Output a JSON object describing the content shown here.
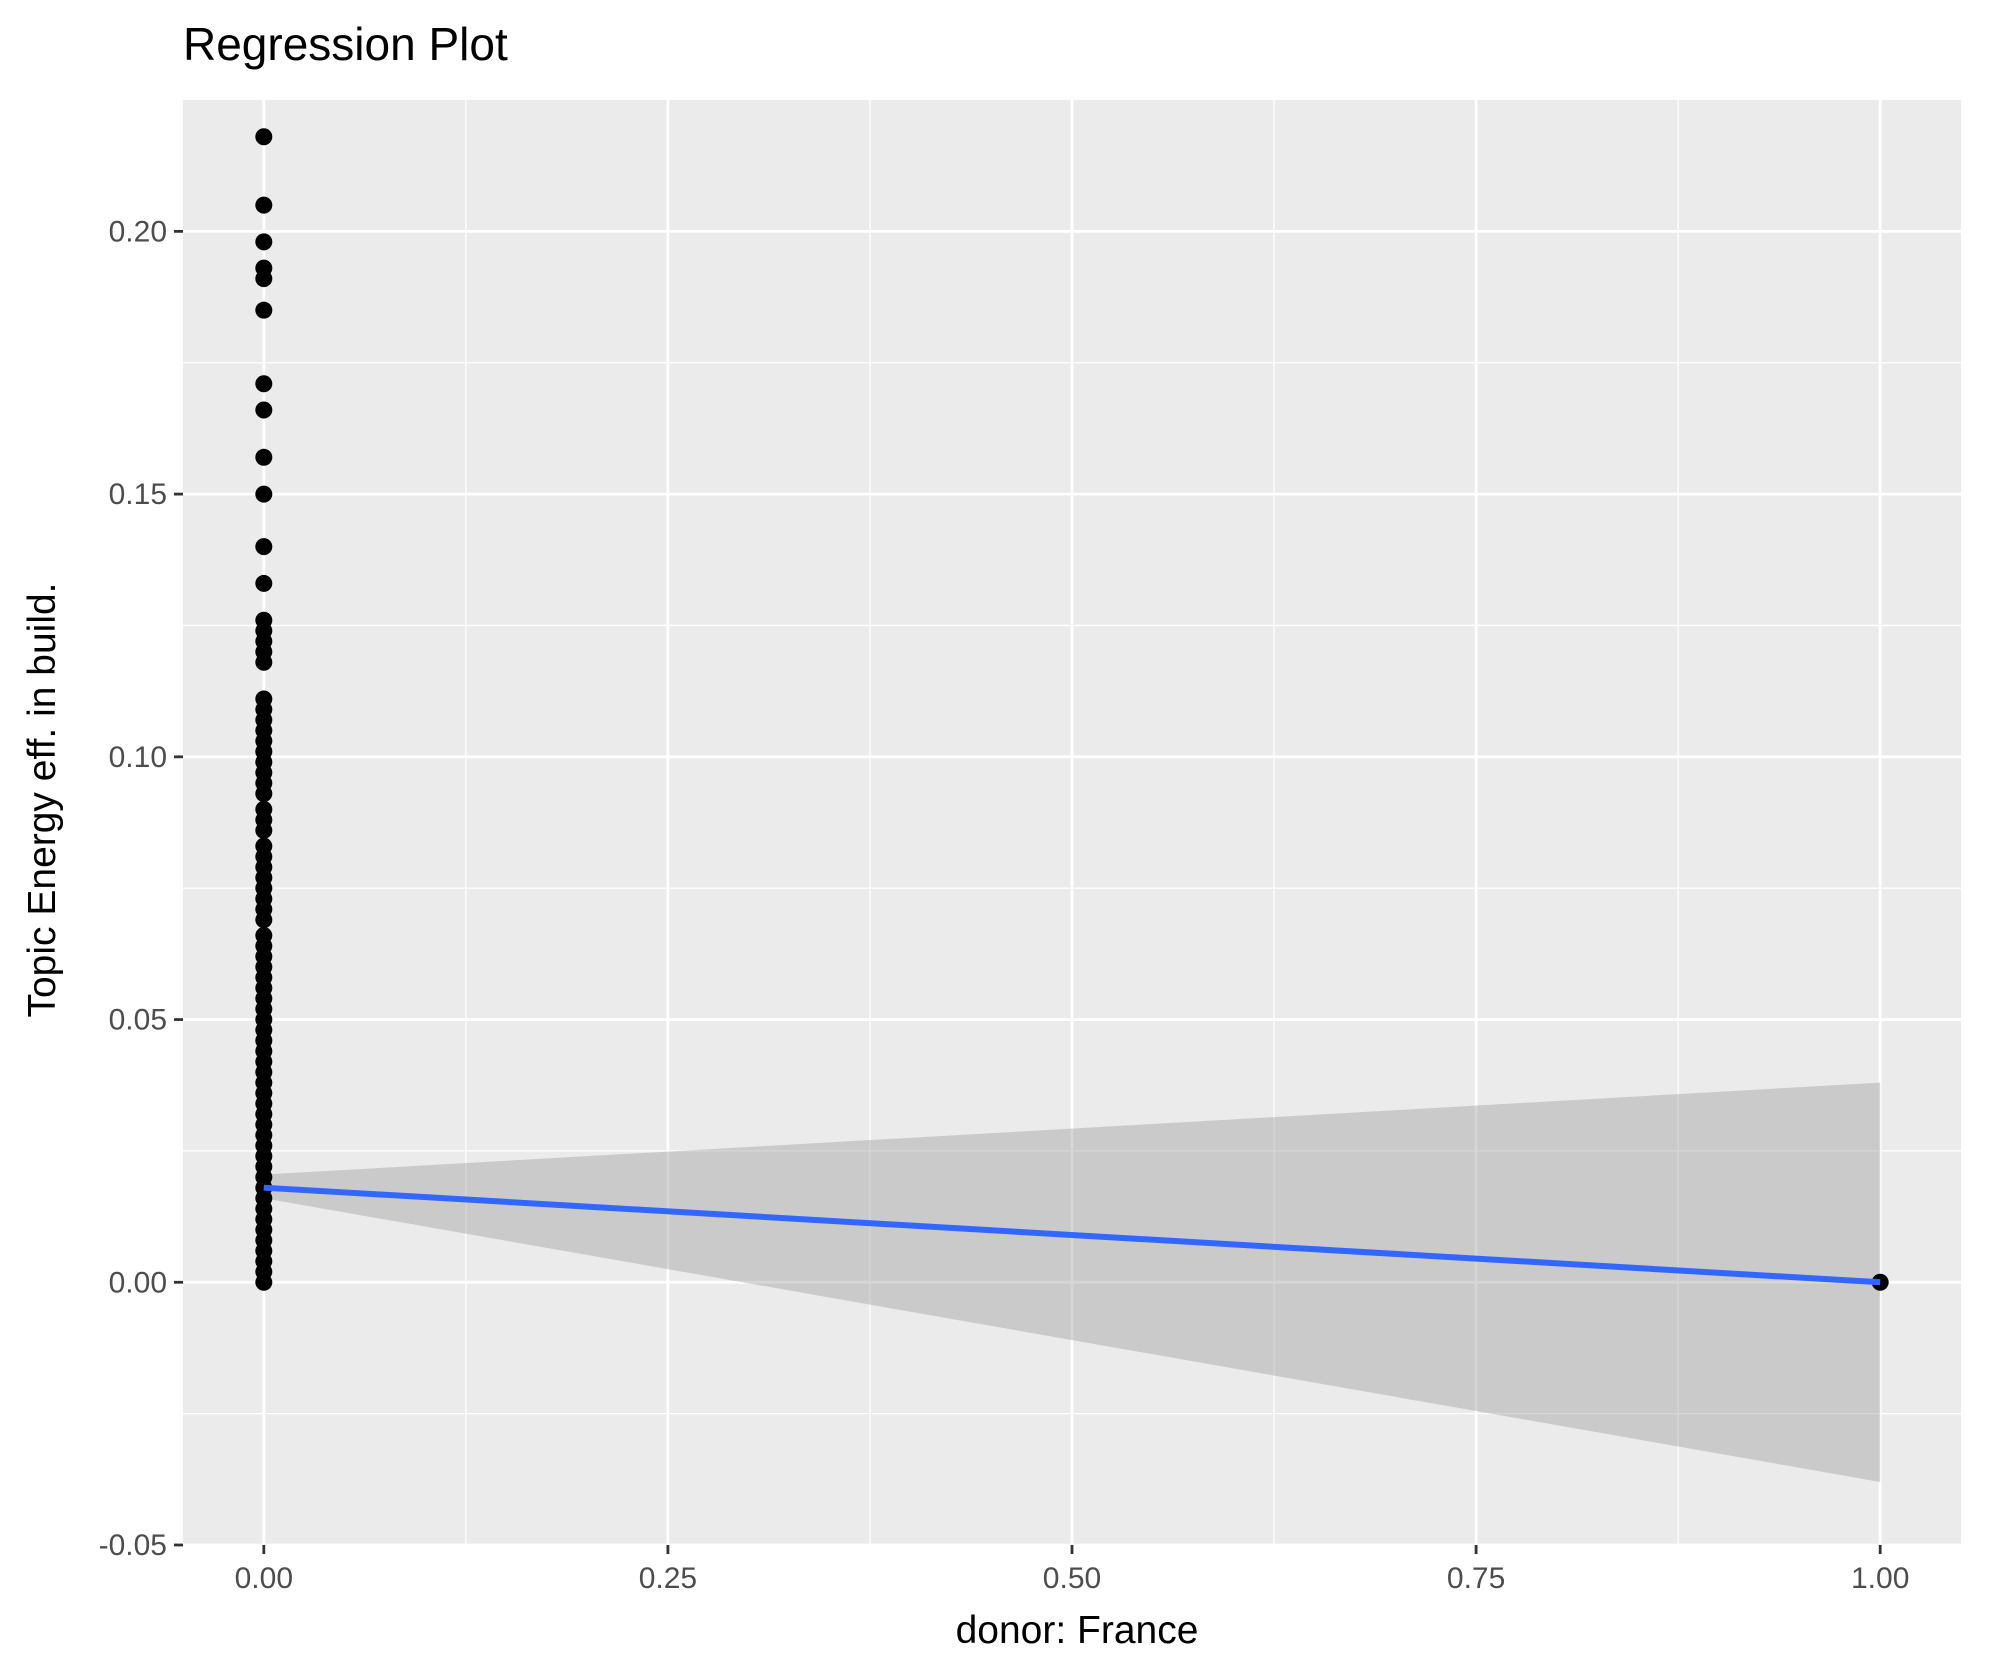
{
  "chart_data": {
    "type": "scatter",
    "title": "Regression Plot",
    "xlabel": "donor: France",
    "ylabel": "Topic Energy eff. in build.",
    "xlim": [
      -0.05,
      1.05
    ],
    "ylim": [
      -0.05,
      0.225
    ],
    "x_ticks": [
      0.0,
      0.25,
      0.5,
      0.75,
      1.0
    ],
    "x_tick_labels": [
      "0.00",
      "0.25",
      "0.50",
      "0.75",
      "1.00"
    ],
    "y_ticks": [
      -0.05,
      0.0,
      0.05,
      0.1,
      0.15,
      0.2
    ],
    "y_tick_labels": [
      "-0.05",
      "0.00",
      "0.05",
      "0.10",
      "0.15",
      "0.20"
    ],
    "grid": true,
    "background": "#ebebeb",
    "points_color": "#000000",
    "series": [
      {
        "type": "scatter",
        "points": [
          [
            0,
            0.218
          ],
          [
            0,
            0.205
          ],
          [
            0,
            0.198
          ],
          [
            0,
            0.193
          ],
          [
            0,
            0.191
          ],
          [
            0,
            0.185
          ],
          [
            0,
            0.171
          ],
          [
            0,
            0.166
          ],
          [
            0,
            0.157
          ],
          [
            0,
            0.15
          ],
          [
            0,
            0.14
          ],
          [
            0,
            0.133
          ],
          [
            0,
            0.126
          ],
          [
            0,
            0.124
          ],
          [
            0,
            0.122
          ],
          [
            0,
            0.12
          ],
          [
            0,
            0.118
          ],
          [
            0,
            0.111
          ],
          [
            0,
            0.109
          ],
          [
            0,
            0.107
          ],
          [
            0,
            0.105
          ],
          [
            0,
            0.103
          ],
          [
            0,
            0.101
          ],
          [
            0,
            0.099
          ],
          [
            0,
            0.097
          ],
          [
            0,
            0.095
          ],
          [
            0,
            0.093
          ],
          [
            0,
            0.09
          ],
          [
            0,
            0.088
          ],
          [
            0,
            0.086
          ],
          [
            0,
            0.083
          ],
          [
            0,
            0.081
          ],
          [
            0,
            0.079
          ],
          [
            0,
            0.077
          ],
          [
            0,
            0.075
          ],
          [
            0,
            0.073
          ],
          [
            0,
            0.071
          ],
          [
            0,
            0.069
          ],
          [
            0,
            0.066
          ],
          [
            0,
            0.064
          ],
          [
            0,
            0.062
          ],
          [
            0,
            0.06
          ],
          [
            0,
            0.058
          ],
          [
            0,
            0.056
          ],
          [
            0,
            0.054
          ],
          [
            0,
            0.052
          ],
          [
            0,
            0.05
          ],
          [
            0,
            0.048
          ],
          [
            0,
            0.046
          ],
          [
            0,
            0.044
          ],
          [
            0,
            0.042
          ],
          [
            0,
            0.04
          ],
          [
            0,
            0.038
          ],
          [
            0,
            0.036
          ],
          [
            0,
            0.034
          ],
          [
            0,
            0.032
          ],
          [
            0,
            0.03
          ],
          [
            0,
            0.028
          ],
          [
            0,
            0.026
          ],
          [
            0,
            0.024
          ],
          [
            0,
            0.022
          ],
          [
            0,
            0.02
          ],
          [
            0,
            0.018
          ],
          [
            0,
            0.016
          ],
          [
            0,
            0.014
          ],
          [
            0,
            0.012
          ],
          [
            0,
            0.01
          ],
          [
            0,
            0.008
          ],
          [
            0,
            0.006
          ],
          [
            0,
            0.004
          ],
          [
            0,
            0.002
          ],
          [
            0,
            0.0
          ],
          [
            1,
            0.0
          ]
        ]
      },
      {
        "type": "line",
        "name": "",
        "color": "#3366ff",
        "x": [
          0,
          1
        ],
        "y": [
          0.018,
          0.0
        ]
      },
      {
        "type": "ribbon",
        "color": "#999999",
        "x": [
          0,
          1
        ],
        "upper": [
          0.0205,
          0.038
        ],
        "lower": [
          0.016,
          -0.038
        ]
      }
    ]
  }
}
